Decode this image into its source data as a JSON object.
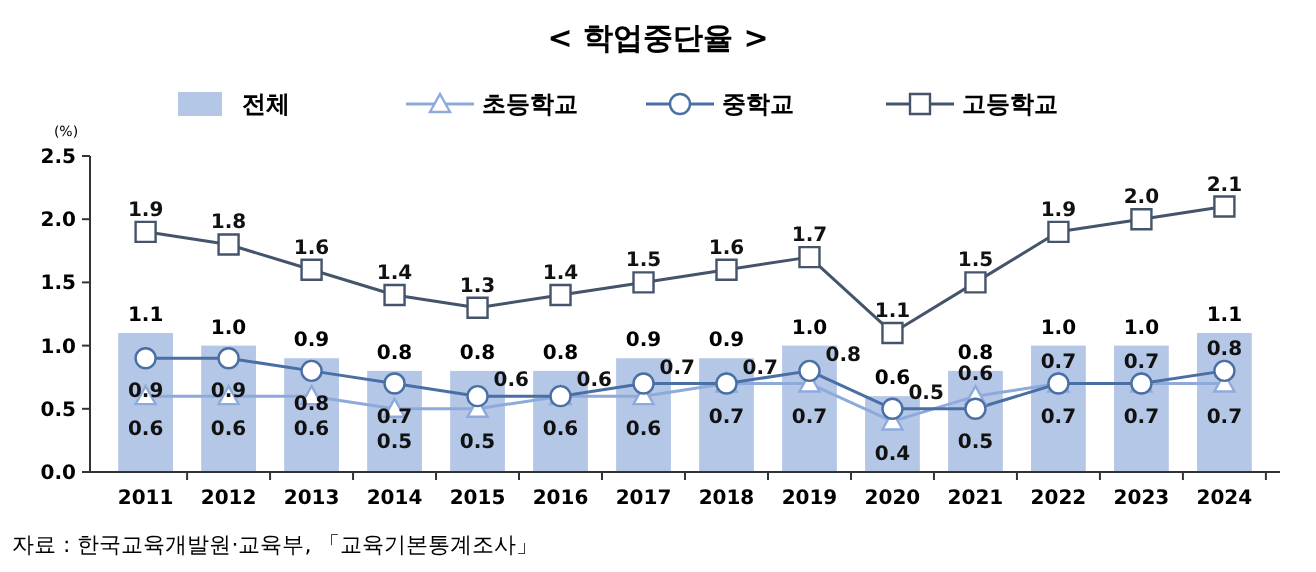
{
  "chart_data": {
    "type": "bar",
    "title": "< 학업중단율 >",
    "ylabel": "(%)",
    "categories": [
      "2011",
      "2012",
      "2013",
      "2014",
      "2015",
      "2016",
      "2017",
      "2018",
      "2019",
      "2020",
      "2021",
      "2022",
      "2023",
      "2024"
    ],
    "series": [
      {
        "name": "전체",
        "color": "#b4c7e7",
        "values": [
          1.1,
          1.0,
          0.9,
          0.8,
          0.8,
          0.8,
          0.9,
          0.9,
          1.0,
          0.6,
          0.8,
          1.0,
          1.0,
          1.1
        ],
        "value_labels": [
          "1.1",
          "1.0",
          "0.9",
          "0.8",
          "0.8",
          "0.8",
          "0.9",
          "0.9",
          "1.0",
          "0.6",
          "0.8",
          "1.0",
          "1.0",
          "1.1"
        ]
      },
      {
        "name": "초등학교",
        "type": "line",
        "marker": "triangle",
        "color": "#8eaadb",
        "values": [
          0.6,
          0.6,
          0.6,
          0.5,
          0.5,
          0.6,
          0.6,
          0.7,
          0.7,
          0.4,
          0.6,
          0.7,
          0.7,
          0.7
        ],
        "value_labels": [
          "0.6",
          "0.6",
          "0.6",
          "0.5",
          "0.5",
          "0.6",
          "0.6",
          "0.7",
          "0.7",
          "0.4",
          "0.6",
          "0.7",
          "0.7",
          "0.7"
        ]
      },
      {
        "name": "중학교",
        "type": "line",
        "marker": "circle",
        "color": "#4a6fa5",
        "values": [
          0.9,
          0.9,
          0.8,
          0.7,
          0.6,
          0.6,
          0.7,
          0.7,
          0.8,
          0.5,
          0.5,
          0.7,
          0.7,
          0.8
        ],
        "value_labels": [
          "0.9",
          "0.9",
          "0.8",
          "0.7",
          "0.6",
          "0.6",
          "0.7",
          "0.7",
          "0.8",
          "0.5",
          "0.5",
          "0.7",
          "0.7",
          "0.8"
        ]
      },
      {
        "name": "고등학교",
        "type": "line",
        "marker": "square",
        "color": "#44546a",
        "values": [
          1.9,
          1.8,
          1.6,
          1.4,
          1.3,
          1.4,
          1.5,
          1.6,
          1.7,
          1.1,
          1.5,
          1.9,
          2.0,
          2.1
        ],
        "value_labels": [
          "1.9",
          "1.8",
          "1.6",
          "1.4",
          "1.3",
          "1.4",
          "1.5",
          "1.6",
          "1.7",
          "1.1",
          "1.5",
          "1.9",
          "2.0",
          "2.1"
        ]
      }
    ],
    "ylim": [
      0,
      2.5
    ],
    "yticks": [
      {
        "value": 0,
        "label": "0.0"
      },
      {
        "value": 0.5,
        "label": "0.5"
      },
      {
        "value": 1,
        "label": "1.0"
      },
      {
        "value": 1.5,
        "label": "1.5"
      },
      {
        "value": 2,
        "label": "2.0"
      },
      {
        "value": 2.5,
        "label": "2.5"
      }
    ],
    "legend": "top",
    "grid": false,
    "annotations": [
      "자료 : 한국교육개발원·교육부, 「교육기본통계조사」"
    ]
  }
}
